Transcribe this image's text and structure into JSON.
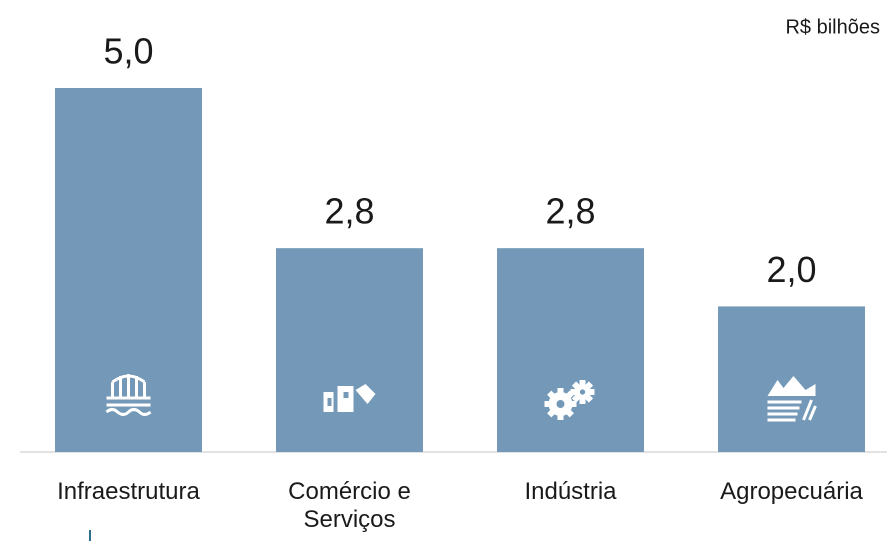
{
  "chart_data": {
    "type": "bar",
    "subtitle": "R$ bilhões",
    "categories": [
      "Infraestrutura",
      "Comércio e Serviços",
      "Indústria",
      "Agropecuária"
    ],
    "values": [
      5.0,
      2.8,
      2.8,
      2.0
    ],
    "value_labels": [
      "5,0",
      "2,8",
      "2,8",
      "2,0"
    ],
    "color": "#7499b8",
    "ylim": [
      0,
      5.0
    ]
  }
}
